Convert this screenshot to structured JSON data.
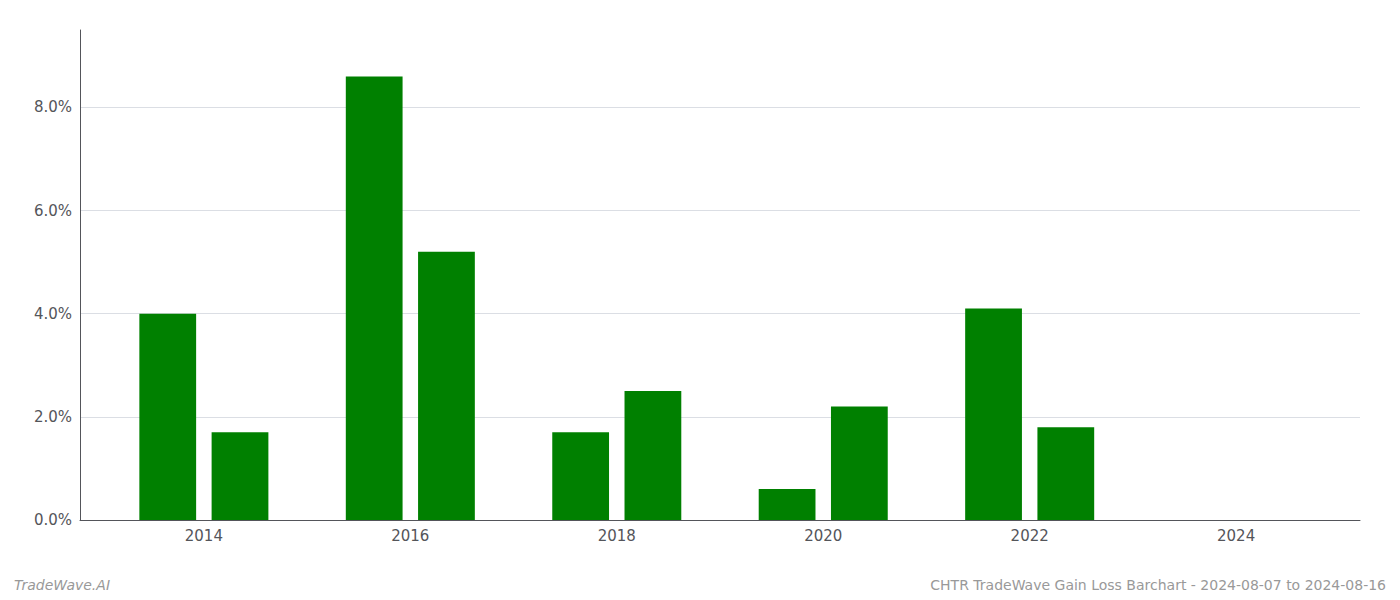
{
  "chart_data": {
    "type": "bar",
    "x": [
      2013.65,
      2014.35,
      2015.65,
      2016.35,
      2017.65,
      2018.35,
      2019.65,
      2020.35,
      2021.65,
      2022.35
    ],
    "values": [
      0.04,
      0.017,
      0.086,
      0.052,
      0.017,
      0.025,
      0.006,
      0.022,
      0.041,
      0.018
    ],
    "color": "#008000",
    "xlim": [
      2012.8,
      2025.2
    ],
    "xticks": [
      2014,
      2016,
      2018,
      2020,
      2022,
      2024
    ],
    "ylim": [
      0,
      0.095
    ],
    "yticks": [
      {
        "value": 0.0,
        "label": "0.0%"
      },
      {
        "value": 0.02,
        "label": "2.0%"
      },
      {
        "value": 0.04,
        "label": "4.0%"
      },
      {
        "value": 0.06,
        "label": "6.0%"
      },
      {
        "value": 0.08,
        "label": "8.0%"
      }
    ],
    "grid": true,
    "annotations": [
      "TradeWave.AI",
      "CHTR TradeWave Gain Loss Barchart - 2024-08-07 to 2024-08-16"
    ]
  }
}
